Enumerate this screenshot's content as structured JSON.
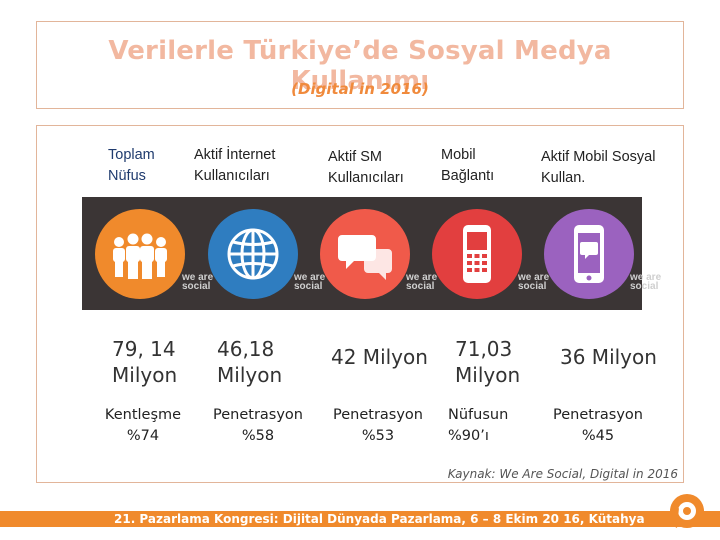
{
  "slide": {
    "title": "Verilerle Türkiye’de Sosyal Medya Kullanımı",
    "subtitle": "(Digital in 2016)"
  },
  "columns": [
    {
      "header": "Toplam Nüfus",
      "stat": "79, 14 Milyon",
      "note": "Kentleşme %74",
      "icon": "people-icon",
      "color": "#f08a2c"
    },
    {
      "header": "Aktif İnternet Kullanıcıları",
      "stat": "46,18 Milyon",
      "note": "Penetrasyon %58",
      "icon": "globe-icon",
      "color": "#2f7dc0"
    },
    {
      "header": "Aktif SM Kullanıcıları",
      "stat": "42 Milyon",
      "note": "Penetrasyon %53",
      "icon": "chat-bubbles-icon",
      "color": "#f05a4a"
    },
    {
      "header": "Mobil Bağlantı",
      "stat": "71,03 Milyon",
      "note": "Nüfusun %90’ı",
      "icon": "mobile-phone-icon",
      "color": "#e23f3f"
    },
    {
      "header": "Aktif Mobil Sosyal Kullan.",
      "stat": "36 Milyon",
      "note": "Penetrasyon %45",
      "icon": "mobile-chat-icon",
      "color": "#9b62bf"
    }
  ],
  "watermark": "we are social",
  "source": "Kaynak: We Are Social, Digital in 2016",
  "footer": "21. Pazarlama Kongresi: Dijital Dünyada Pazarlama, 6 – 8 Ekim 20 16, Kütahya"
}
